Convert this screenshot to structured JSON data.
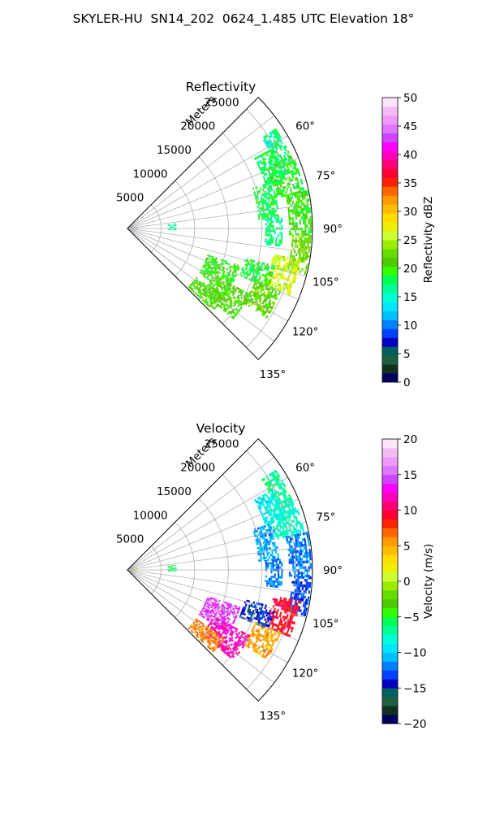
{
  "figure": {
    "title": "SKYLER-HU  SN14_202  0624_1.485 UTC Elevation 18°"
  },
  "chart_data": [
    {
      "type": "heatmap",
      "projection": "polar-sector",
      "title": "Reflectivity",
      "range_label": "Meters",
      "azimuth_range_deg": [
        45,
        135
      ],
      "range_max_m": 27500,
      "range_ticks": [
        5000,
        10000,
        15000,
        20000,
        25000
      ],
      "azimuth_ticks": [
        60,
        75,
        90,
        105,
        120,
        135
      ],
      "azimuth_tick_labels": [
        "60°",
        "75°",
        "90°",
        "105°",
        "120°",
        "135°"
      ],
      "grid": true,
      "colorbar": {
        "label": "Reflectivity dBZ",
        "min": 0,
        "max": 50,
        "ticks": [
          0,
          5,
          10,
          15,
          20,
          25,
          30,
          35,
          40,
          45,
          50
        ],
        "tick_labels": [
          "0",
          "5",
          "10",
          "15",
          "20",
          "25",
          "30",
          "35",
          "40",
          "45",
          "50"
        ],
        "colors": [
          "#000060",
          "#103020",
          "#1f5f3f",
          "#005f5f",
          "#0000c0",
          "#0040ff",
          "#0080ff",
          "#00bfff",
          "#00e5ff",
          "#00ffd5",
          "#00ff99",
          "#00ff55",
          "#33ff00",
          "#4ccc00",
          "#66dd00",
          "#99ee00",
          "#ccff33",
          "#eeee00",
          "#ffdd00",
          "#ffbb00",
          "#ff9900",
          "#ff6600",
          "#ff2200",
          "#ff0033",
          "#ff0077",
          "#ff00bb",
          "#ff00ff",
          "#cc44ff",
          "#dd77ff",
          "#ee99f5",
          "#f5bbf5",
          "#fde6fd"
        ]
      },
      "cells": [
        {
          "az": [
            56,
            68
          ],
          "r": [
            24000,
            26500
          ],
          "value": 17
        },
        {
          "az": [
            61,
            72
          ],
          "r": [
            21500,
            24500
          ],
          "value": 18
        },
        {
          "az": [
            66,
            78
          ],
          "r": [
            22500,
            26800
          ],
          "value": 19
        },
        {
          "az": [
            72,
            86
          ],
          "r": [
            19500,
            22500
          ],
          "value": 18
        },
        {
          "az": [
            78,
            92
          ],
          "r": [
            24000,
            27200
          ],
          "value": 20
        },
        {
          "az": [
            86,
            96
          ],
          "r": [
            20500,
            23000
          ],
          "value": 17
        },
        {
          "az": [
            92,
            104
          ],
          "r": [
            24500,
            27300
          ],
          "value": 23
        },
        {
          "az": [
            100,
            112
          ],
          "r": [
            22000,
            26000
          ],
          "value": 26
        },
        {
          "az": [
            104,
            113
          ],
          "r": [
            18000,
            22500
          ],
          "value": 19
        },
        {
          "az": [
            112,
            122
          ],
          "r": [
            20500,
            24500
          ],
          "value": 22
        },
        {
          "az": [
            108,
            122
          ],
          "r": [
            12500,
            17500
          ],
          "value": 20
        },
        {
          "az": [
            118,
            130
          ],
          "r": [
            14500,
            20500
          ],
          "value": 21
        },
        {
          "az": [
            125,
            134
          ],
          "r": [
            12500,
            17500
          ],
          "value": 21
        },
        {
          "az": [
            58,
            60
          ],
          "r": [
            24000,
            24800
          ],
          "value": 14
        },
        {
          "az": [
            84,
            92
          ],
          "r": [
            6000,
            7200
          ],
          "value": 16
        },
        {
          "az": [
            84,
            98
          ],
          "r": [
            400,
            1400
          ],
          "value": 10
        }
      ]
    },
    {
      "type": "heatmap",
      "projection": "polar-sector",
      "title": "Velocity",
      "range_label": "Meters",
      "azimuth_range_deg": [
        45,
        135
      ],
      "range_max_m": 27500,
      "range_ticks": [
        5000,
        10000,
        15000,
        20000,
        25000
      ],
      "azimuth_ticks": [
        60,
        75,
        90,
        105,
        120,
        135
      ],
      "azimuth_tick_labels": [
        "60°",
        "75°",
        "90°",
        "105°",
        "120°",
        "135°"
      ],
      "grid": true,
      "colorbar": {
        "label": "Velocity (m/s)",
        "min": -20,
        "max": 20,
        "ticks": [
          -20,
          -15,
          -10,
          -5,
          0,
          5,
          10,
          15,
          20
        ],
        "tick_labels": [
          "−20",
          "−15",
          "−10",
          "−5",
          "0",
          "5",
          "10",
          "15",
          "20"
        ],
        "colors": [
          "#000060",
          "#103020",
          "#1f5f3f",
          "#005f5f",
          "#0000c0",
          "#0040ff",
          "#0080ff",
          "#00bfff",
          "#00e5ff",
          "#00ffd5",
          "#00ff99",
          "#00ff55",
          "#33ff00",
          "#4ccc00",
          "#66dd00",
          "#99ee00",
          "#ccff33",
          "#eeee00",
          "#ffdd00",
          "#ffbb00",
          "#ff9900",
          "#ff6600",
          "#ff2200",
          "#ff0033",
          "#ff0077",
          "#ff00bb",
          "#ff00ff",
          "#cc44ff",
          "#dd77ff",
          "#ee99f5",
          "#f5bbf5",
          "#fde6fd"
        ]
      },
      "cells": [
        {
          "az": [
            56,
            68
          ],
          "r": [
            24000,
            26500
          ],
          "value": -7
        },
        {
          "az": [
            61,
            72
          ],
          "r": [
            21500,
            24500
          ],
          "value": -9
        },
        {
          "az": [
            66,
            78
          ],
          "r": [
            22500,
            26800
          ],
          "value": -8
        },
        {
          "az": [
            72,
            86
          ],
          "r": [
            19500,
            22500
          ],
          "value": -11
        },
        {
          "az": [
            78,
            92
          ],
          "r": [
            24000,
            27200
          ],
          "value": -12
        },
        {
          "az": [
            86,
            96
          ],
          "r": [
            20500,
            23000
          ],
          "value": -12
        },
        {
          "az": [
            92,
            104
          ],
          "r": [
            24500,
            27300
          ],
          "value": -13
        },
        {
          "az": [
            100,
            112
          ],
          "r": [
            22000,
            26000
          ],
          "value": 9
        },
        {
          "az": [
            104,
            113
          ],
          "r": [
            18000,
            22500
          ],
          "value": -14
        },
        {
          "az": [
            112,
            122
          ],
          "r": [
            20500,
            24500
          ],
          "value": 5
        },
        {
          "az": [
            108,
            122
          ],
          "r": [
            12500,
            17500
          ],
          "value": 14
        },
        {
          "az": [
            118,
            130
          ],
          "r": [
            14500,
            20500
          ],
          "value": 12
        },
        {
          "az": [
            125,
            134
          ],
          "r": [
            12500,
            17500
          ],
          "value": 6
        },
        {
          "az": [
            58,
            60
          ],
          "r": [
            24000,
            24800
          ],
          "value": -6
        },
        {
          "az": [
            84,
            92
          ],
          "r": [
            6000,
            7200
          ],
          "value": -6
        },
        {
          "az": [
            84,
            98
          ],
          "r": [
            400,
            1400
          ],
          "value": 2
        }
      ]
    }
  ]
}
